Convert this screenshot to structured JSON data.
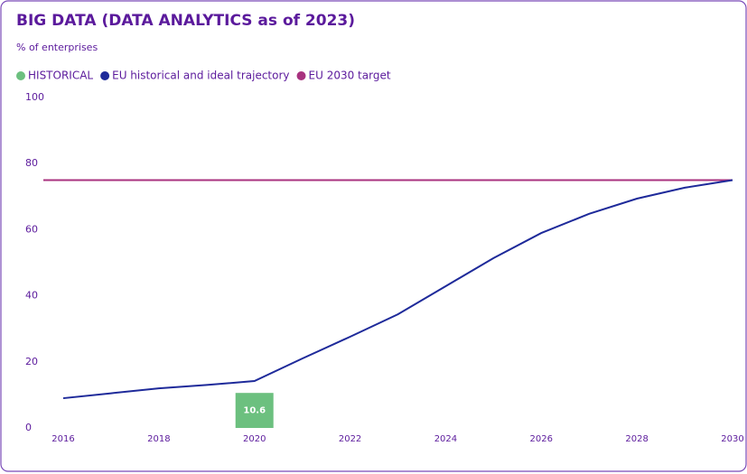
{
  "chart_data": {
    "type": "combo",
    "title": "BIG DATA (DATA ANALYTICS as of 2023)",
    "subtitle": "% of enterprises",
    "x": [
      2016,
      2017,
      2018,
      2019,
      2020,
      2021,
      2022,
      2023,
      2024,
      2025,
      2026,
      2027,
      2028,
      2029,
      2030
    ],
    "series": [
      {
        "name": "HISTORICAL",
        "type": "bar",
        "color": "#6cc07f",
        "values": [
          null,
          null,
          null,
          null,
          10.6,
          null,
          null,
          null,
          null,
          null,
          null,
          null,
          null,
          null,
          null
        ]
      },
      {
        "name": "EU historical and ideal trajectory",
        "type": "line",
        "color": "#1e2a9a",
        "values": [
          9,
          10.5,
          12,
          13,
          14.2,
          21,
          27.6,
          34.4,
          42.9,
          51.4,
          59,
          64.8,
          69.4,
          72.7,
          75
        ]
      }
    ],
    "target": {
      "name": "EU 2030 target",
      "color": "#a8327f",
      "value": 75
    },
    "xlim": [
      2016,
      2030
    ],
    "xticks": [
      2016,
      2018,
      2020,
      2022,
      2024,
      2026,
      2028,
      2030
    ],
    "ylim": [
      0,
      100
    ],
    "yticks": [
      0,
      20,
      40,
      60,
      80,
      100
    ]
  }
}
